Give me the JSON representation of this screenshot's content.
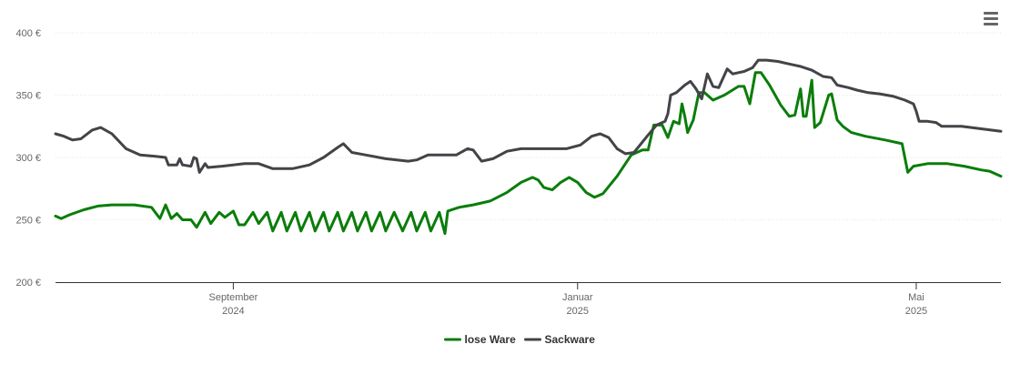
{
  "chart_data": {
    "type": "line",
    "title": "",
    "xlabel": "",
    "ylabel": "",
    "y_unit": "€",
    "ylim": [
      200,
      400
    ],
    "y_ticks": [
      "200 €",
      "250 €",
      "300 €",
      "350 €",
      "400 €"
    ],
    "y_tick_values": [
      200,
      250,
      300,
      350,
      400
    ],
    "xlim": [
      "2024-06-30",
      "2025-05-31"
    ],
    "x_ticks": [
      {
        "date": "2024-09-01",
        "month": "September",
        "year": "2024"
      },
      {
        "date": "2025-01-01",
        "month": "Januar",
        "year": "2025"
      },
      {
        "date": "2025-05-01",
        "month": "Mai",
        "year": "2025"
      }
    ],
    "grid": true,
    "legend_position": "bottom-center",
    "series": [
      {
        "name": "lose Ware",
        "color": "#0a7d0a",
        "points": [
          [
            "2024-06-30",
            253
          ],
          [
            "2024-07-02",
            251
          ],
          [
            "2024-07-05",
            254
          ],
          [
            "2024-07-10",
            258
          ],
          [
            "2024-07-15",
            261
          ],
          [
            "2024-07-20",
            262
          ],
          [
            "2024-07-28",
            262
          ],
          [
            "2024-08-03",
            260
          ],
          [
            "2024-08-06",
            251
          ],
          [
            "2024-08-08",
            262
          ],
          [
            "2024-08-10",
            251
          ],
          [
            "2024-08-12",
            255
          ],
          [
            "2024-08-14",
            250
          ],
          [
            "2024-08-17",
            250
          ],
          [
            "2024-08-19",
            244
          ],
          [
            "2024-08-22",
            256
          ],
          [
            "2024-08-24",
            247
          ],
          [
            "2024-08-27",
            256
          ],
          [
            "2024-08-29",
            252
          ],
          [
            "2024-09-01",
            257
          ],
          [
            "2024-09-03",
            246
          ],
          [
            "2024-09-05",
            246
          ],
          [
            "2024-09-08",
            256
          ],
          [
            "2024-09-10",
            247
          ],
          [
            "2024-09-13",
            256
          ],
          [
            "2024-09-15",
            241
          ],
          [
            "2024-09-18",
            256
          ],
          [
            "2024-09-20",
            241
          ],
          [
            "2024-09-23",
            256
          ],
          [
            "2024-09-25",
            241
          ],
          [
            "2024-09-28",
            256
          ],
          [
            "2024-09-30",
            241
          ],
          [
            "2024-10-03",
            256
          ],
          [
            "2024-10-05",
            241
          ],
          [
            "2024-10-08",
            256
          ],
          [
            "2024-10-10",
            241
          ],
          [
            "2024-10-13",
            256
          ],
          [
            "2024-10-15",
            241
          ],
          [
            "2024-10-18",
            256
          ],
          [
            "2024-10-20",
            241
          ],
          [
            "2024-10-23",
            256
          ],
          [
            "2024-10-25",
            241
          ],
          [
            "2024-10-28",
            256
          ],
          [
            "2024-10-31",
            241
          ],
          [
            "2024-11-03",
            256
          ],
          [
            "2024-11-05",
            241
          ],
          [
            "2024-11-08",
            256
          ],
          [
            "2024-11-10",
            241
          ],
          [
            "2024-11-13",
            256
          ],
          [
            "2024-11-15",
            239
          ],
          [
            "2024-11-16",
            257
          ],
          [
            "2024-11-20",
            260
          ],
          [
            "2024-11-25",
            262
          ],
          [
            "2024-12-01",
            265
          ],
          [
            "2024-12-07",
            272
          ],
          [
            "2024-12-12",
            280
          ],
          [
            "2024-12-16",
            284
          ],
          [
            "2024-12-18",
            282
          ],
          [
            "2024-12-20",
            276
          ],
          [
            "2024-12-23",
            274
          ],
          [
            "2024-12-26",
            280
          ],
          [
            "2024-12-29",
            284
          ],
          [
            "2025-01-01",
            280
          ],
          [
            "2025-01-04",
            272
          ],
          [
            "2025-01-07",
            268
          ],
          [
            "2025-01-10",
            271
          ],
          [
            "2025-01-15",
            285
          ],
          [
            "2025-01-20",
            302
          ],
          [
            "2025-01-24",
            306
          ],
          [
            "2025-01-26",
            306
          ],
          [
            "2025-01-28",
            326
          ],
          [
            "2025-01-31",
            326
          ],
          [
            "2025-02-02",
            316
          ],
          [
            "2025-02-04",
            329
          ],
          [
            "2025-02-06",
            327
          ],
          [
            "2025-02-07",
            343
          ],
          [
            "2025-02-08",
            333
          ],
          [
            "2025-02-09",
            320
          ],
          [
            "2025-02-11",
            330
          ],
          [
            "2025-02-13",
            352
          ],
          [
            "2025-02-15",
            352
          ],
          [
            "2025-02-18",
            346
          ],
          [
            "2025-02-22",
            350
          ],
          [
            "2025-02-27",
            357
          ],
          [
            "2025-03-01",
            357
          ],
          [
            "2025-03-03",
            343
          ],
          [
            "2025-03-05",
            368
          ],
          [
            "2025-03-07",
            368
          ],
          [
            "2025-03-10",
            358
          ],
          [
            "2025-03-14",
            342
          ],
          [
            "2025-03-17",
            333
          ],
          [
            "2025-03-19",
            334
          ],
          [
            "2025-03-21",
            355
          ],
          [
            "2025-03-22",
            333
          ],
          [
            "2025-03-23",
            333
          ],
          [
            "2025-03-25",
            362
          ],
          [
            "2025-03-26",
            324
          ],
          [
            "2025-03-28",
            328
          ],
          [
            "2025-03-31",
            350
          ],
          [
            "2025-04-01",
            351
          ],
          [
            "2025-04-03",
            330
          ],
          [
            "2025-04-05",
            325
          ],
          [
            "2025-04-08",
            320
          ],
          [
            "2025-04-13",
            317
          ],
          [
            "2025-04-20",
            314
          ],
          [
            "2025-04-26",
            311
          ],
          [
            "2025-04-28",
            288
          ],
          [
            "2025-04-30",
            293
          ],
          [
            "2025-05-05",
            295
          ],
          [
            "2025-05-12",
            295
          ],
          [
            "2025-05-18",
            293
          ],
          [
            "2025-05-24",
            290
          ],
          [
            "2025-05-27",
            289
          ],
          [
            "2025-05-31",
            285
          ]
        ]
      },
      {
        "name": "Sackware",
        "color": "#434348",
        "points": [
          [
            "2024-06-30",
            319
          ],
          [
            "2024-07-03",
            317
          ],
          [
            "2024-07-06",
            314
          ],
          [
            "2024-07-09",
            315
          ],
          [
            "2024-07-13",
            322
          ],
          [
            "2024-07-16",
            324
          ],
          [
            "2024-07-20",
            319
          ],
          [
            "2024-07-25",
            307
          ],
          [
            "2024-07-30",
            302
          ],
          [
            "2024-08-04",
            301
          ],
          [
            "2024-08-08",
            300
          ],
          [
            "2024-08-09",
            294
          ],
          [
            "2024-08-12",
            294
          ],
          [
            "2024-08-13",
            299
          ],
          [
            "2024-08-14",
            294
          ],
          [
            "2024-08-17",
            293
          ],
          [
            "2024-08-18",
            300
          ],
          [
            "2024-08-19",
            299
          ],
          [
            "2024-08-20",
            288
          ],
          [
            "2024-08-22",
            295
          ],
          [
            "2024-08-23",
            292
          ],
          [
            "2024-08-28",
            293
          ],
          [
            "2024-09-05",
            295
          ],
          [
            "2024-09-10",
            295
          ],
          [
            "2024-09-15",
            291
          ],
          [
            "2024-09-22",
            291
          ],
          [
            "2024-09-28",
            294
          ],
          [
            "2024-10-03",
            300
          ],
          [
            "2024-10-08",
            308
          ],
          [
            "2024-10-10",
            311
          ],
          [
            "2024-10-13",
            304
          ],
          [
            "2024-10-18",
            302
          ],
          [
            "2024-10-25",
            299
          ],
          [
            "2024-11-02",
            297
          ],
          [
            "2024-11-05",
            298
          ],
          [
            "2024-11-09",
            302
          ],
          [
            "2024-11-16",
            302
          ],
          [
            "2024-11-19",
            302
          ],
          [
            "2024-11-23",
            307
          ],
          [
            "2024-11-25",
            306
          ],
          [
            "2024-11-28",
            297
          ],
          [
            "2024-12-02",
            299
          ],
          [
            "2024-12-07",
            305
          ],
          [
            "2024-12-12",
            307
          ],
          [
            "2024-12-20",
            307
          ],
          [
            "2024-12-28",
            307
          ],
          [
            "2025-01-02",
            310
          ],
          [
            "2025-01-06",
            317
          ],
          [
            "2025-01-09",
            319
          ],
          [
            "2025-01-12",
            316
          ],
          [
            "2025-01-15",
            307
          ],
          [
            "2025-01-18",
            303
          ],
          [
            "2025-01-21",
            304
          ],
          [
            "2025-01-26",
            318
          ],
          [
            "2025-01-29",
            326
          ],
          [
            "2025-02-01",
            329
          ],
          [
            "2025-02-02",
            335
          ],
          [
            "2025-02-03",
            350
          ],
          [
            "2025-02-05",
            352
          ],
          [
            "2025-02-08",
            358
          ],
          [
            "2025-02-10",
            361
          ],
          [
            "2025-02-12",
            355
          ],
          [
            "2025-02-14",
            347
          ],
          [
            "2025-02-16",
            367
          ],
          [
            "2025-02-18",
            357
          ],
          [
            "2025-02-20",
            356
          ],
          [
            "2025-02-23",
            371
          ],
          [
            "2025-02-25",
            367
          ],
          [
            "2025-02-27",
            368
          ],
          [
            "2025-03-01",
            369
          ],
          [
            "2025-03-04",
            372
          ],
          [
            "2025-03-06",
            378
          ],
          [
            "2025-03-09",
            378
          ],
          [
            "2025-03-13",
            377
          ],
          [
            "2025-03-17",
            375
          ],
          [
            "2025-03-21",
            373
          ],
          [
            "2025-03-25",
            370
          ],
          [
            "2025-03-29",
            365
          ],
          [
            "2025-04-01",
            364
          ],
          [
            "2025-04-03",
            358
          ],
          [
            "2025-04-07",
            356
          ],
          [
            "2025-04-10",
            354
          ],
          [
            "2025-04-14",
            352
          ],
          [
            "2025-04-18",
            351
          ],
          [
            "2025-04-23",
            349
          ],
          [
            "2025-04-27",
            346
          ],
          [
            "2025-04-30",
            343
          ],
          [
            "2025-05-01",
            337
          ],
          [
            "2025-05-02",
            329
          ],
          [
            "2025-05-05",
            329
          ],
          [
            "2025-05-08",
            328
          ],
          [
            "2025-05-10",
            325
          ],
          [
            "2025-05-17",
            325
          ],
          [
            "2025-05-24",
            323
          ],
          [
            "2025-05-31",
            321
          ]
        ]
      }
    ]
  },
  "menu": {
    "icon": "hamburger-menu-icon"
  }
}
